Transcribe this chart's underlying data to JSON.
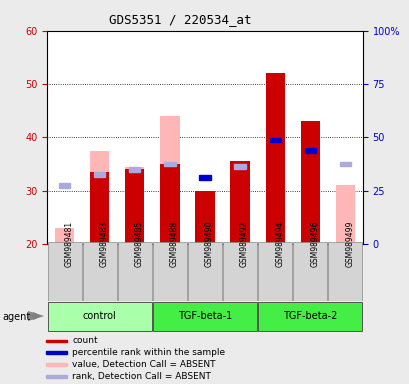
{
  "title": "GDS5351 / 220534_at",
  "samples": [
    "GSM989481",
    "GSM989483",
    "GSM989485",
    "GSM989488",
    "GSM989490",
    "GSM989492",
    "GSM989494",
    "GSM989496",
    "GSM989499"
  ],
  "groups_info": [
    {
      "name": "control",
      "start": 0,
      "end": 2
    },
    {
      "name": "TGF-beta-1",
      "start": 3,
      "end": 5
    },
    {
      "name": "TGF-beta-2",
      "start": 6,
      "end": 8
    }
  ],
  "group_fill_colors": [
    "#aaffaa",
    "#44ee44",
    "#44ee44"
  ],
  "ymin": 20,
  "ymax": 60,
  "y_ticks": [
    20,
    30,
    40,
    50,
    60
  ],
  "y2min": 0,
  "y2max": 100,
  "y2_ticks": [
    0,
    25,
    50,
    75,
    100
  ],
  "pink_bars": [
    23.0,
    37.5,
    34.5,
    44.0,
    null,
    null,
    null,
    null,
    31.0
  ],
  "red_bars": [
    null,
    33.5,
    34.0,
    35.0,
    30.0,
    35.5,
    52.0,
    43.0,
    null
  ],
  "blue_squares": [
    null,
    null,
    null,
    null,
    32.5,
    null,
    39.5,
    37.5,
    null
  ],
  "light_blue_squares": [
    31.0,
    33.0,
    34.0,
    35.0,
    null,
    34.5,
    null,
    null,
    35.0
  ],
  "bar_width": 0.55,
  "bg_color": "#ebebeb",
  "plot_bg": "#ffffff",
  "red_color": "#cc0000",
  "pink_color": "#ffb6b6",
  "blue_color": "#0000cc",
  "light_blue_color": "#aaaadd",
  "left_label_color": "#cc0000",
  "right_label_color": "#0000cc",
  "legend_items": [
    [
      "#cc0000",
      "count"
    ],
    [
      "#0000cc",
      "percentile rank within the sample"
    ],
    [
      "#ffb6b6",
      "value, Detection Call = ABSENT"
    ],
    [
      "#aaaadd",
      "rank, Detection Call = ABSENT"
    ]
  ]
}
